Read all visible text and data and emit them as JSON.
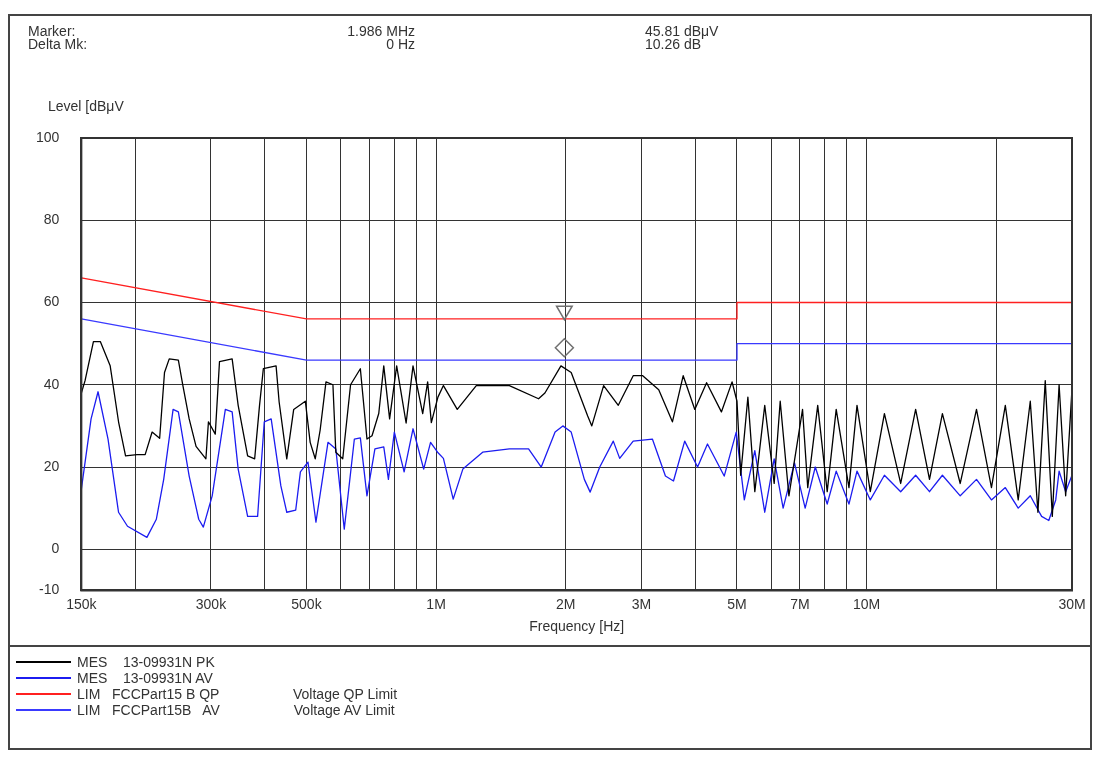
{
  "chart_data": {
    "type": "line",
    "xlabel": "Frequency [Hz]",
    "ylabel": "Level [dBμV",
    "annotations": [
      "Marker:",
      "1.986 MHz",
      "45.81 dBμV",
      "Delta Mk:",
      "0 Hz",
      "10.26 dB"
    ],
    "log": "x",
    "grid": true,
    "legend": "bottom",
    "marker": "none",
    "xlim": [
      150000,
      30000000
    ],
    "xticks": [
      {
        "value": 150000,
        "label": "150k"
      },
      {
        "value": 200000,
        "label": null
      },
      {
        "value": 300000,
        "label": "300k"
      },
      {
        "value": 400000,
        "label": null
      },
      {
        "value": 500000,
        "label": "500k"
      },
      {
        "value": 600000,
        "label": null
      },
      {
        "value": 700000,
        "label": null
      },
      {
        "value": 800000,
        "label": null
      },
      {
        "value": 900000,
        "label": null
      },
      {
        "value": 1000000,
        "label": "1M"
      },
      {
        "value": 2000000,
        "label": "2M"
      },
      {
        "value": 3000000,
        "label": "3M"
      },
      {
        "value": 4000000,
        "label": null
      },
      {
        "value": 5000000,
        "label": "5M"
      },
      {
        "value": 6000000,
        "label": null
      },
      {
        "value": 7000000,
        "label": "7M"
      },
      {
        "value": 8000000,
        "label": null
      },
      {
        "value": 9000000,
        "label": null
      },
      {
        "value": 10000000,
        "label": "10M"
      },
      {
        "value": 20000000,
        "label": null
      },
      {
        "value": 30000000,
        "label": "30M"
      }
    ],
    "ylim": [
      -10,
      100
    ],
    "yticks": [
      -10,
      0,
      20,
      40,
      60,
      80,
      100
    ],
    "series": [
      {
        "name": "MES    13-09931N PK",
        "color": "#000000",
        "x": [
          150000,
          153000,
          160000,
          166000,
          175000,
          183000,
          190000,
          202000,
          211000,
          219000,
          228000,
          234000,
          240000,
          252000,
          258000,
          267000,
          277000,
          292000,
          296000,
          307000,
          314000,
          336000,
          347000,
          365000,
          379000,
          389000,
          397000,
          425000,
          432000,
          450000,
          467000,
          497000,
          510000,
          524000,
          538000,
          555000,
          576000,
          585000,
          607000,
          633000,
          667000,
          691000,
          710000,
          736000,
          756000,
          780000,
          810000,
          852000,
          884000,
          931000,
          956000,
          975000,
          1010000,
          1040000,
          1120000,
          1240000,
          1480000,
          1730000,
          1790000,
          1950000,
          2060000,
          2250000,
          2300000,
          2450000,
          2650000,
          2870000,
          3020000,
          3290000,
          3540000,
          3750000,
          3990000,
          4250000,
          4600000,
          4870000,
          5000000,
          5100000,
          5300000,
          5500000,
          5800000,
          6100000,
          6300000,
          6600000,
          7100000,
          7300000,
          7700000,
          8100000,
          8500000,
          9100000,
          9500000,
          10200000,
          11000000,
          12000000,
          13000000,
          14000000,
          15000000,
          16500000,
          18000000,
          19500000,
          21000000,
          22500000,
          24000000,
          25000000,
          26000000,
          27000000,
          28000000,
          29000000,
          30000000
        ],
        "values": [
          38,
          41,
          50.5,
          50.5,
          44.6,
          31,
          22.7,
          23,
          23,
          28.5,
          27,
          43,
          46.3,
          46,
          40,
          31.7,
          25,
          22,
          31,
          28,
          45.6,
          46.3,
          35,
          22.7,
          22,
          35,
          43.9,
          44.6,
          35.8,
          22,
          34,
          36,
          26,
          22,
          29,
          40.7,
          40,
          23.6,
          22,
          40,
          43.9,
          26.8,
          27.6,
          33,
          44.6,
          31.7,
          44.6,
          30.7,
          44.6,
          33,
          40.7,
          30.8,
          37,
          39.8,
          34,
          39.8,
          39.8,
          36.6,
          38,
          44.6,
          43,
          32.4,
          30,
          39.8,
          35,
          42.2,
          42.2,
          38.8,
          31,
          42.2,
          34,
          40.5,
          33.4,
          40.7,
          36,
          18,
          37,
          14,
          35,
          16,
          36,
          13,
          34,
          15,
          35,
          14,
          34,
          15,
          35,
          14,
          33,
          16,
          34,
          17,
          33,
          16,
          34,
          15,
          35,
          12,
          36,
          9,
          41,
          8,
          40,
          13,
          39
        ]
      },
      {
        "name": "MES    13-09931N AV",
        "color": "#1c1cf0",
        "x": [
          150000,
          158000,
          164000,
          173000,
          183000,
          192000,
          213000,
          224000,
          233000,
          245000,
          252000,
          267000,
          281000,
          288000,
          302000,
          324000,
          336000,
          347000,
          365000,
          385000,
          399000,
          414000,
          436000,
          450000,
          472000,
          484000,
          504000,
          526000,
          561000,
          585000,
          612000,
          646000,
          667000,
          691000,
          721000,
          756000,
          775000,
          800000,
          843000,
          884000,
          936000,
          971000,
          1008000,
          1040000,
          1096000,
          1154000,
          1283000,
          1480000,
          1640000,
          1755000,
          1890000,
          1970000,
          2060000,
          2210000,
          2280000,
          2400000,
          2580000,
          2670000,
          2870000,
          3180000,
          3410000,
          3560000,
          3780000,
          4050000,
          4270000,
          4670000,
          4980000,
          5200000,
          5500000,
          5800000,
          6100000,
          6400000,
          6800000,
          7200000,
          7600000,
          8100000,
          8500000,
          9100000,
          9500000,
          10200000,
          11000000,
          12000000,
          13000000,
          14000000,
          15000000,
          16500000,
          18000000,
          19500000,
          21000000,
          22500000,
          24000000,
          25500000,
          26500000,
          27500000,
          28000000,
          29000000,
          30000000
        ],
        "values": [
          14.6,
          31.7,
          38.3,
          26.8,
          9,
          5.6,
          2.9,
          7.3,
          17,
          34,
          33.4,
          17.8,
          7.3,
          5.4,
          13,
          34,
          33.4,
          19.5,
          8,
          8,
          31,
          31.7,
          15.4,
          9,
          9.5,
          18.8,
          21.2,
          6.6,
          26,
          24.4,
          4.9,
          26.8,
          27.1,
          13,
          24.4,
          24.9,
          17,
          28.5,
          18.8,
          29.3,
          19.5,
          26,
          23.6,
          22.1,
          12.2,
          19.5,
          23.6,
          24.4,
          24.4,
          20,
          28.5,
          30,
          28.5,
          17,
          13.9,
          20,
          26.3,
          22.1,
          26.3,
          26.8,
          17.8,
          16.6,
          26.3,
          20,
          25.6,
          17.8,
          28.5,
          12,
          24,
          9,
          22,
          10,
          21,
          10,
          20,
          11,
          19,
          11,
          19,
          12,
          18,
          14,
          18,
          14,
          18,
          13,
          17,
          12,
          15,
          10,
          13,
          8,
          7,
          12,
          19,
          14,
          18
        ]
      },
      {
        "name": "LIM   FCCPart15 B QP                   Voltage QP Limit",
        "color": "#ff2020",
        "x": [
          150000,
          500000,
          5000000,
          5000000,
          30000000
        ],
        "values": [
          66,
          56,
          56,
          60,
          60
        ]
      },
      {
        "name": "LIM   FCCPart15B   AV                   Voltage AV Limit",
        "color": "#3a3aff",
        "x": [
          150000,
          500000,
          5000000,
          5000000,
          30000000
        ],
        "values": [
          56,
          46,
          46,
          50,
          50
        ]
      },
      {
        "type": "scatter",
        "marker": "triangle",
        "color": "#707070",
        "x": [
          1986000
        ],
        "values": [
          58
        ]
      },
      {
        "type": "scatter",
        "marker": "diamond",
        "color": "#707070",
        "x": [
          1986000
        ],
        "values": [
          49
        ]
      }
    ]
  }
}
